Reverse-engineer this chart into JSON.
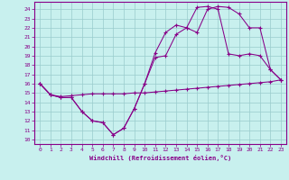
{
  "xlabel": "Windchill (Refroidissement éolien,°C)",
  "xlim_min": -0.5,
  "xlim_max": 23.5,
  "ylim_min": 9.5,
  "ylim_max": 24.8,
  "xticks": [
    0,
    1,
    2,
    3,
    4,
    5,
    6,
    7,
    8,
    9,
    10,
    11,
    12,
    13,
    14,
    15,
    16,
    17,
    18,
    19,
    20,
    21,
    22,
    23
  ],
  "yticks": [
    10,
    11,
    12,
    13,
    14,
    15,
    16,
    17,
    18,
    19,
    20,
    21,
    22,
    23,
    24
  ],
  "bg_color": "#c8f0ee",
  "line_color": "#880088",
  "grid_color": "#99cccc",
  "curves": [
    {
      "x": [
        0,
        1,
        2,
        3,
        4,
        5,
        6,
        7,
        8,
        9,
        10,
        11,
        12,
        13,
        14,
        15,
        16,
        17,
        18,
        19,
        20,
        21,
        22,
        23
      ],
      "y": [
        16,
        14.8,
        14.6,
        14.7,
        14.8,
        14.9,
        14.9,
        14.9,
        14.9,
        15.0,
        15.0,
        15.1,
        15.2,
        15.3,
        15.4,
        15.5,
        15.6,
        15.7,
        15.8,
        15.9,
        16.0,
        16.1,
        16.2,
        16.4
      ]
    },
    {
      "x": [
        0,
        1,
        2,
        3,
        4,
        5,
        6,
        7,
        8,
        9,
        10,
        11,
        12,
        13,
        14,
        15,
        16,
        17,
        18,
        19,
        20,
        21,
        22,
        23
      ],
      "y": [
        16,
        14.8,
        14.5,
        14.5,
        13.0,
        12.0,
        11.8,
        10.5,
        11.2,
        13.3,
        16.0,
        18.8,
        19.0,
        21.3,
        22.0,
        24.2,
        24.3,
        24.0,
        19.2,
        19.0,
        19.2,
        19.0,
        17.5,
        16.4
      ]
    },
    {
      "x": [
        0,
        1,
        2,
        3,
        4,
        5,
        6,
        7,
        8,
        9,
        10,
        11,
        12,
        13,
        14,
        15,
        16,
        17,
        18,
        19,
        20,
        21,
        22,
        23
      ],
      "y": [
        16,
        14.8,
        14.5,
        14.5,
        13.0,
        12.0,
        11.8,
        10.5,
        11.2,
        13.3,
        16.0,
        19.3,
        21.5,
        22.3,
        22.0,
        21.5,
        24.0,
        24.3,
        24.2,
        23.5,
        22.0,
        22.0,
        17.5,
        16.4
      ]
    }
  ]
}
